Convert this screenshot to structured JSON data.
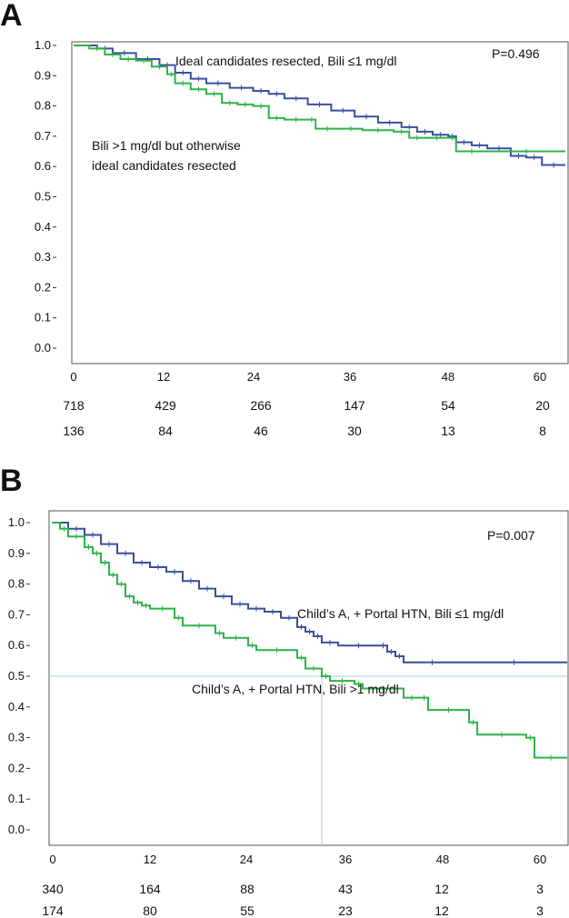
{
  "panels": [
    {
      "letter": "A",
      "p_value": "P=0.496",
      "annotations": [
        "Ideal candidates resected, Bili ≤1 mg/dl",
        "Bili >1 mg/dl but otherwise",
        "ideal candidates resected"
      ],
      "risk_rows": [
        [
          "718",
          "429",
          "266",
          "147",
          "54",
          "20"
        ],
        [
          "136",
          "84",
          "46",
          "30",
          "13",
          "8"
        ]
      ]
    },
    {
      "letter": "B",
      "p_value": "P=0.007",
      "annotations": [
        "Child’s A, + Portal HTN, Bili ≤1 mg/dl",
        "Child’s A, + Portal HTN, Bili >1 mg/dl"
      ],
      "risk_rows": [
        [
          "340",
          "164",
          "88",
          "43",
          "12",
          "3"
        ],
        [
          "174",
          "80",
          "55",
          "23",
          "12",
          "3"
        ]
      ]
    }
  ],
  "colors": {
    "blue": "#3a4fa0",
    "green": "#2db34a",
    "ref": "#c9dde9"
  },
  "chart_data": [
    {
      "type": "line",
      "title": "",
      "xticks": [
        "0",
        "12",
        "24",
        "36",
        "48",
        "60"
      ],
      "yticks": [
        "0.0",
        "0.1",
        "0.2",
        "0.3",
        "0.4",
        "0.5",
        "0.6",
        "0.7",
        "0.8",
        "0.9",
        "1.0"
      ],
      "xlim": [
        0,
        63
      ],
      "ylim": [
        0,
        1
      ],
      "series": [
        {
          "color": "#3a4fa0",
          "points": [
            [
              0,
              1.0
            ],
            [
              3,
              0.99
            ],
            [
              5,
              0.975
            ],
            [
              8,
              0.955
            ],
            [
              11,
              0.935
            ],
            [
              13,
              0.91
            ],
            [
              15,
              0.89
            ],
            [
              17,
              0.875
            ],
            [
              20,
              0.86
            ],
            [
              23,
              0.85
            ],
            [
              25,
              0.84
            ],
            [
              27,
              0.825
            ],
            [
              30,
              0.805
            ],
            [
              33,
              0.785
            ],
            [
              36,
              0.765
            ],
            [
              39,
              0.745
            ],
            [
              42,
              0.73
            ],
            [
              44,
              0.715
            ],
            [
              46,
              0.705
            ],
            [
              48,
              0.7
            ],
            [
              49,
              0.68
            ],
            [
              51,
              0.67
            ],
            [
              53,
              0.66
            ],
            [
              56,
              0.635
            ],
            [
              58,
              0.63
            ],
            [
              60,
              0.605
            ],
            [
              63,
              0.605
            ]
          ]
        },
        {
          "color": "#2db34a",
          "points": [
            [
              0,
              1.0
            ],
            [
              2,
              0.99
            ],
            [
              4,
              0.97
            ],
            [
              6,
              0.955
            ],
            [
              8,
              0.95
            ],
            [
              10,
              0.93
            ],
            [
              12,
              0.905
            ],
            [
              13,
              0.875
            ],
            [
              15,
              0.855
            ],
            [
              17,
              0.84
            ],
            [
              19,
              0.81
            ],
            [
              21,
              0.805
            ],
            [
              23,
              0.8
            ],
            [
              25,
              0.76
            ],
            [
              27,
              0.755
            ],
            [
              30,
              0.755
            ],
            [
              31,
              0.725
            ],
            [
              34,
              0.725
            ],
            [
              37,
              0.72
            ],
            [
              41,
              0.715
            ],
            [
              43,
              0.695
            ],
            [
              45,
              0.695
            ],
            [
              48,
              0.695
            ],
            [
              49,
              0.65
            ],
            [
              53,
              0.65
            ],
            [
              63,
              0.65
            ]
          ]
        }
      ]
    },
    {
      "type": "line",
      "title": "",
      "xticks": [
        "0",
        "12",
        "24",
        "36",
        "48",
        "60"
      ],
      "yticks": [
        "0.0",
        "0.1",
        "0.2",
        "0.3",
        "0.4",
        "0.5",
        "0.6",
        "0.7",
        "0.8",
        "0.9",
        "1.0"
      ],
      "xlim": [
        0,
        63
      ],
      "ylim": [
        0,
        1
      ],
      "reference_y": 0.5,
      "reference_x": 33,
      "series": [
        {
          "color": "#3a4fa0",
          "points": [
            [
              0,
              1.0
            ],
            [
              2,
              0.98
            ],
            [
              4,
              0.96
            ],
            [
              6,
              0.93
            ],
            [
              8,
              0.9
            ],
            [
              10,
              0.87
            ],
            [
              12,
              0.855
            ],
            [
              14,
              0.84
            ],
            [
              16,
              0.81
            ],
            [
              18,
              0.785
            ],
            [
              20,
              0.76
            ],
            [
              22,
              0.735
            ],
            [
              24,
              0.72
            ],
            [
              26,
              0.71
            ],
            [
              28,
              0.69
            ],
            [
              30,
              0.66
            ],
            [
              31,
              0.645
            ],
            [
              32,
              0.63
            ],
            [
              33,
              0.61
            ],
            [
              35,
              0.6
            ],
            [
              40,
              0.6
            ],
            [
              41,
              0.58
            ],
            [
              42,
              0.565
            ],
            [
              43,
              0.545
            ],
            [
              50,
              0.545
            ],
            [
              63,
              0.545
            ]
          ]
        },
        {
          "color": "#2db34a",
          "points": [
            [
              0,
              1.0
            ],
            [
              1,
              0.98
            ],
            [
              2,
              0.955
            ],
            [
              4,
              0.92
            ],
            [
              5,
              0.9
            ],
            [
              6,
              0.87
            ],
            [
              7,
              0.83
            ],
            [
              8,
              0.8
            ],
            [
              9,
              0.76
            ],
            [
              10,
              0.74
            ],
            [
              11,
              0.73
            ],
            [
              12,
              0.72
            ],
            [
              15,
              0.69
            ],
            [
              16,
              0.665
            ],
            [
              20,
              0.64
            ],
            [
              21,
              0.625
            ],
            [
              24,
              0.6
            ],
            [
              25,
              0.585
            ],
            [
              30,
              0.56
            ],
            [
              31,
              0.525
            ],
            [
              33,
              0.5
            ],
            [
              34,
              0.485
            ],
            [
              37,
              0.475
            ],
            [
              38,
              0.46
            ],
            [
              43,
              0.43
            ],
            [
              45,
              0.43
            ],
            [
              46,
              0.39
            ],
            [
              51,
              0.35
            ],
            [
              52,
              0.31
            ],
            [
              58,
              0.3
            ],
            [
              59,
              0.235
            ],
            [
              63,
              0.235
            ]
          ]
        }
      ]
    }
  ]
}
